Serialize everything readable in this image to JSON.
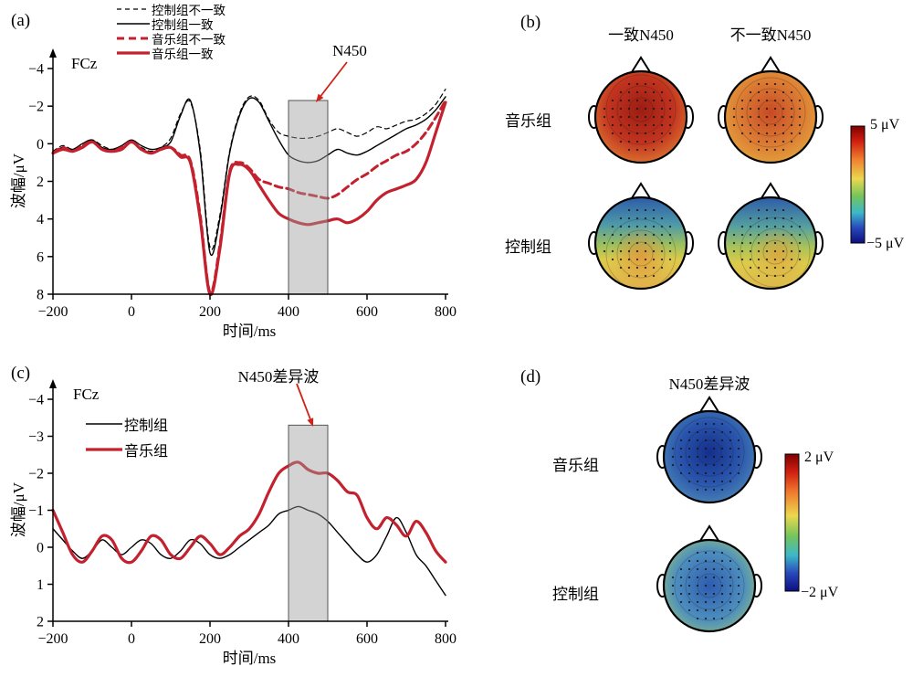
{
  "panel_a": {
    "tag": "(a)",
    "electrode": "FCz",
    "ylabel": "波幅/μV",
    "xlabel": "时间/ms",
    "annotation": "N450",
    "legend": [
      "控制组不一致",
      "控制组一致",
      "音乐组不一致",
      "音乐组一致"
    ]
  },
  "panel_b": {
    "tag": "(b)",
    "col_titles": [
      "一致N450",
      "不一致N450"
    ],
    "row_labels": [
      "音乐组",
      "控制组"
    ],
    "colorbar_top": "5 μV",
    "colorbar_bottom": "−5 μV"
  },
  "panel_c": {
    "tag": "(c)",
    "electrode": "FCz",
    "ylabel": "波幅/μV",
    "xlabel": "时间/ms",
    "annotation": "N450差异波",
    "legend": [
      "控制组",
      "音乐组"
    ]
  },
  "panel_d": {
    "tag": "(d)",
    "title": "N450差异波",
    "row_labels": [
      "音乐组",
      "控制组"
    ],
    "colorbar_top": "2 μV",
    "colorbar_bottom": "−2 μV"
  },
  "colors": {
    "red_line": "#c4212f",
    "black_line": "#000000",
    "window_fill": "#9e9e9e",
    "arrow_red": "#cf2318"
  },
  "chart_data": [
    {
      "id": "erp_a",
      "type": "line",
      "electrode": "FCz",
      "xlabel": "时间/ms",
      "ylabel": "波幅/μV",
      "annotation": "N450",
      "x": [
        -200,
        -175,
        -150,
        -125,
        -100,
        -75,
        -50,
        -25,
        0,
        25,
        50,
        75,
        100,
        125,
        150,
        175,
        200,
        225,
        250,
        275,
        300,
        325,
        350,
        375,
        400,
        425,
        450,
        475,
        500,
        525,
        550,
        575,
        600,
        625,
        650,
        675,
        700,
        725,
        750,
        775,
        800
      ],
      "series": [
        {
          "name": "控制组不一致",
          "color": "#000000",
          "width": 1.2,
          "dash": "5,4",
          "values": [
            0.4,
            0.1,
            0.3,
            0.1,
            -0.2,
            0.1,
            0.3,
            0.2,
            -0.1,
            0.2,
            0.4,
            0.2,
            -0.3,
            -1.6,
            -2.2,
            0.3,
            5.5,
            3.8,
            0.4,
            -1.6,
            -2.5,
            -2.3,
            -1.3,
            -0.6,
            -0.4,
            -0.3,
            -0.3,
            -0.4,
            -0.6,
            -0.8,
            -0.6,
            -0.4,
            -0.6,
            -0.9,
            -0.8,
            -1.0,
            -1.2,
            -1.3,
            -1.6,
            -2.1,
            -2.9
          ]
        },
        {
          "name": "控制组一致",
          "color": "#000000",
          "width": 1.4,
          "dash": "",
          "values": [
            0.4,
            0.2,
            0.3,
            0.0,
            -0.2,
            0.2,
            0.3,
            0.1,
            -0.2,
            0.1,
            0.3,
            0.2,
            -0.1,
            -1.5,
            -2.3,
            0.5,
            5.8,
            4.0,
            0.5,
            -1.5,
            -2.4,
            -2.2,
            -1.2,
            -0.2,
            0.6,
            0.9,
            1.0,
            0.9,
            0.6,
            0.3,
            0.5,
            0.6,
            0.4,
            0.1,
            -0.2,
            -0.5,
            -0.8,
            -1.0,
            -1.3,
            -1.8,
            -2.5
          ]
        },
        {
          "name": "音乐组不一致",
          "color": "#c4212f",
          "width": 3.0,
          "dash": "8,5",
          "values": [
            0.5,
            0.2,
            0.4,
            0.1,
            -0.1,
            0.3,
            0.4,
            0.2,
            -0.1,
            0.3,
            0.5,
            0.3,
            0.2,
            0.6,
            0.9,
            3.8,
            7.9,
            5.4,
            1.5,
            1.0,
            1.3,
            1.9,
            2.1,
            2.3,
            2.4,
            2.6,
            2.7,
            2.8,
            2.9,
            2.7,
            2.3,
            1.9,
            1.6,
            1.2,
            0.9,
            0.6,
            0.4,
            0.0,
            -0.6,
            -1.4,
            -2.3
          ]
        },
        {
          "name": "音乐组一致",
          "color": "#c4212f",
          "width": 3.2,
          "dash": "",
          "values": [
            0.5,
            0.3,
            0.4,
            0.2,
            -0.1,
            0.3,
            0.4,
            0.3,
            -0.1,
            0.3,
            0.5,
            0.3,
            0.2,
            0.7,
            1.0,
            4.0,
            8.0,
            5.6,
            1.6,
            1.1,
            1.4,
            2.2,
            3.0,
            3.7,
            4.0,
            4.2,
            4.3,
            4.2,
            4.1,
            4.0,
            4.2,
            4.0,
            3.6,
            3.0,
            2.6,
            2.4,
            2.2,
            1.9,
            1.0,
            -0.6,
            -2.2
          ]
        }
      ],
      "xlim": [
        -200,
        800
      ],
      "ylim": [
        -4,
        8
      ],
      "y_inverted": true,
      "xticks": [
        -200,
        0,
        200,
        400,
        600,
        800
      ],
      "yticks": [
        -4,
        -2,
        0,
        2,
        4,
        6,
        8
      ],
      "highlight_window_ms": [
        400,
        500
      ]
    },
    {
      "id": "topo_b",
      "type": "heatmap",
      "subtype": "eeg-topomap-grid",
      "col_titles": [
        "一致N450",
        "不一致N450"
      ],
      "row_labels": [
        "音乐组",
        "控制组"
      ],
      "colorbar": {
        "max": 5,
        "min": -5,
        "unit": "μV",
        "max_label": "5 μV",
        "min_label": "−5 μV"
      },
      "colorbar_stops": [
        [
          0,
          "#7f0000"
        ],
        [
          0.13,
          "#d01f10"
        ],
        [
          0.28,
          "#f07b2e"
        ],
        [
          0.45,
          "#ecd84e"
        ],
        [
          0.6,
          "#74c45c"
        ],
        [
          0.74,
          "#3cb8c8"
        ],
        [
          0.87,
          "#2848bc"
        ],
        [
          1,
          "#0e0e7e"
        ]
      ],
      "maps": [
        {
          "row": "音乐组",
          "col": "一致N450",
          "pattern": "strong fronto-central positivity, deep red center",
          "gradient": {
            "kind": "radial",
            "cx": 0.5,
            "cy": 0.42,
            "r": 0.8,
            "stops": [
              [
                0,
                "#9c1d13"
              ],
              [
                0.45,
                "#c1331f"
              ],
              [
                0.72,
                "#d96c2e"
              ],
              [
                1,
                "#e7a843"
              ]
            ]
          }
        },
        {
          "row": "音乐组",
          "col": "不一致N450",
          "pattern": "moderate central positivity, orange center yellow rim",
          "gradient": {
            "kind": "radial",
            "cx": 0.5,
            "cy": 0.45,
            "r": 0.85,
            "stops": [
              [
                0,
                "#c84a24"
              ],
              [
                0.45,
                "#dd8035"
              ],
              [
                0.8,
                "#e6b23f"
              ],
              [
                1,
                "#dfca4e"
              ]
            ]
          }
        },
        {
          "row": "控制组",
          "col": "一致N450",
          "pattern": "frontal blue, centro-parietal orange-yellow",
          "gradient": {
            "kind": "linear",
            "stops": [
              [
                0,
                "#2d5ca8"
              ],
              [
                0.3,
                "#4e9aa8"
              ],
              [
                0.52,
                "#9cc05e"
              ],
              [
                0.68,
                "#ddca4c"
              ],
              [
                1,
                "#e2b04a"
              ]
            ],
            "cx": 0.5,
            "cy": 0.62,
            "blob": {
              "cx": 0.5,
              "cy": 0.64,
              "r": 0.32,
              "color": "#e2923a",
              "opacity": 0.8
            }
          }
        },
        {
          "row": "控制组",
          "col": "不一致N450",
          "pattern": "frontal blue, right centro-parietal yellow",
          "gradient": {
            "kind": "linear",
            "stops": [
              [
                0,
                "#2d5ca8"
              ],
              [
                0.32,
                "#55a0a0"
              ],
              [
                0.55,
                "#aac458"
              ],
              [
                0.72,
                "#ddca4c"
              ],
              [
                1,
                "#ddb84a"
              ]
            ],
            "cx": 0.55,
            "cy": 0.6,
            "blob": {
              "cx": 0.58,
              "cy": 0.62,
              "r": 0.3,
              "color": "#e0a03c",
              "opacity": 0.75
            }
          }
        }
      ]
    },
    {
      "id": "erp_c",
      "type": "line",
      "electrode": "FCz",
      "xlabel": "时间/ms",
      "ylabel": "波幅/μV",
      "annotation": "N450差异波",
      "x": [
        -200,
        -175,
        -150,
        -125,
        -100,
        -75,
        -50,
        -25,
        0,
        25,
        50,
        75,
        100,
        125,
        150,
        175,
        200,
        225,
        250,
        275,
        300,
        325,
        350,
        375,
        400,
        425,
        450,
        475,
        500,
        525,
        550,
        575,
        600,
        625,
        650,
        675,
        700,
        725,
        750,
        775,
        800
      ],
      "series": [
        {
          "name": "控制组",
          "color": "#000000",
          "width": 1.4,
          "dash": "",
          "values": [
            -0.5,
            -0.2,
            0.1,
            0.3,
            0.1,
            -0.2,
            0.0,
            0.2,
            0.0,
            -0.2,
            -0.1,
            0.2,
            0.3,
            0.1,
            -0.2,
            -0.1,
            0.2,
            0.3,
            0.2,
            0.0,
            -0.2,
            -0.4,
            -0.6,
            -0.9,
            -1.0,
            -1.1,
            -1.0,
            -0.9,
            -0.7,
            -0.4,
            -0.1,
            0.2,
            0.4,
            0.2,
            -0.3,
            -0.8,
            -0.4,
            0.2,
            0.5,
            0.9,
            1.3
          ]
        },
        {
          "name": "音乐组",
          "color": "#c4212f",
          "width": 3.2,
          "dash": "",
          "values": [
            -1.0,
            -0.4,
            0.2,
            0.4,
            0.1,
            -0.3,
            -0.2,
            0.3,
            0.4,
            0.1,
            -0.3,
            -0.2,
            0.2,
            0.3,
            0.0,
            -0.3,
            -0.1,
            0.2,
            0.0,
            -0.3,
            -0.5,
            -0.9,
            -1.5,
            -2.0,
            -2.2,
            -2.3,
            -2.1,
            -2.0,
            -2.0,
            -1.8,
            -1.5,
            -1.4,
            -0.8,
            -0.5,
            -0.8,
            -0.6,
            -0.3,
            -0.7,
            -0.4,
            0.1,
            0.4
          ]
        }
      ],
      "xlim": [
        -200,
        800
      ],
      "ylim": [
        -4,
        2
      ],
      "y_inverted": true,
      "xticks": [
        -200,
        0,
        200,
        400,
        600,
        800
      ],
      "yticks": [
        -4,
        -3,
        -2,
        -1,
        0,
        1,
        2
      ],
      "highlight_window_ms": [
        400,
        500
      ]
    },
    {
      "id": "topo_d",
      "type": "heatmap",
      "subtype": "eeg-topomap-column",
      "title": "N450差异波",
      "row_labels": [
        "音乐组",
        "控制组"
      ],
      "colorbar": {
        "max": 2,
        "min": -2,
        "unit": "μV",
        "max_label": "2 μV",
        "min_label": "−2 μV"
      },
      "colorbar_stops": [
        [
          0,
          "#7f0000"
        ],
        [
          0.13,
          "#d01f10"
        ],
        [
          0.28,
          "#f07b2e"
        ],
        [
          0.45,
          "#ecd84e"
        ],
        [
          0.6,
          "#74c45c"
        ],
        [
          0.74,
          "#3cb8c8"
        ],
        [
          0.87,
          "#2848bc"
        ],
        [
          1,
          "#0e0e7e"
        ]
      ],
      "maps": [
        {
          "row": "音乐组",
          "pattern": "broad fronto-central negativity, deep blue center",
          "gradient": {
            "kind": "radial",
            "cx": 0.5,
            "cy": 0.45,
            "r": 0.85,
            "stops": [
              [
                0,
                "#142f8c"
              ],
              [
                0.4,
                "#2a55ad"
              ],
              [
                0.7,
                "#4b86b5"
              ],
              [
                0.9,
                "#6fae93"
              ],
              [
                1,
                "#95bd6e"
              ]
            ]
          }
        },
        {
          "row": "控制组",
          "pattern": "mild central negativity, blue center with yellow-green rim",
          "gradient": {
            "kind": "radial",
            "cx": 0.5,
            "cy": 0.5,
            "r": 0.85,
            "stops": [
              [
                0,
                "#2d5cb0"
              ],
              [
                0.45,
                "#4e8fbe"
              ],
              [
                0.72,
                "#93bf79"
              ],
              [
                0.9,
                "#cfca55"
              ],
              [
                1,
                "#ddcb4c"
              ]
            ]
          }
        }
      ]
    }
  ]
}
